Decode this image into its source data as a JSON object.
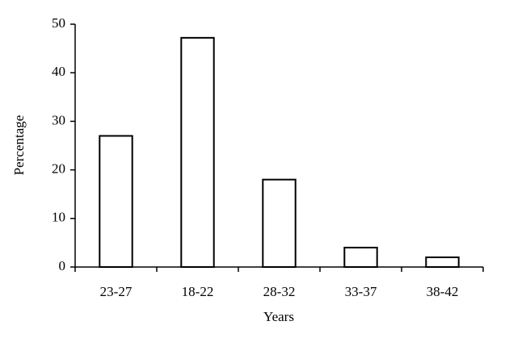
{
  "chart_data": {
    "type": "bar",
    "xlabel": "Years",
    "ylabel": "Percentage",
    "categories": [
      "23-27",
      "18-22",
      "28-32",
      "33-37",
      "38-42"
    ],
    "values": [
      27,
      47.2,
      18,
      4,
      2
    ],
    "color": "#ffffff",
    "edgecolor": "#000000",
    "ylim": [
      0,
      50
    ],
    "yticks": [
      0,
      10,
      20,
      30,
      40,
      50
    ],
    "grid": false
  }
}
